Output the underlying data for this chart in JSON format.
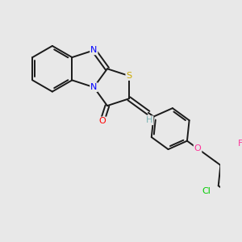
{
  "background_color": "#e8e8e8",
  "bond_color": "#1a1a1a",
  "bond_width": 1.4,
  "double_sep": 0.1,
  "figsize": [
    3.0,
    3.0
  ],
  "dpi": 100,
  "colors": {
    "N": "#0000ff",
    "S": "#ccaa00",
    "O_carb": "#ff0000",
    "O_eth": "#ff3399",
    "Cl": "#00cc00",
    "F": "#ff3399",
    "H": "#7ab3b3",
    "C": "#1a1a1a"
  }
}
